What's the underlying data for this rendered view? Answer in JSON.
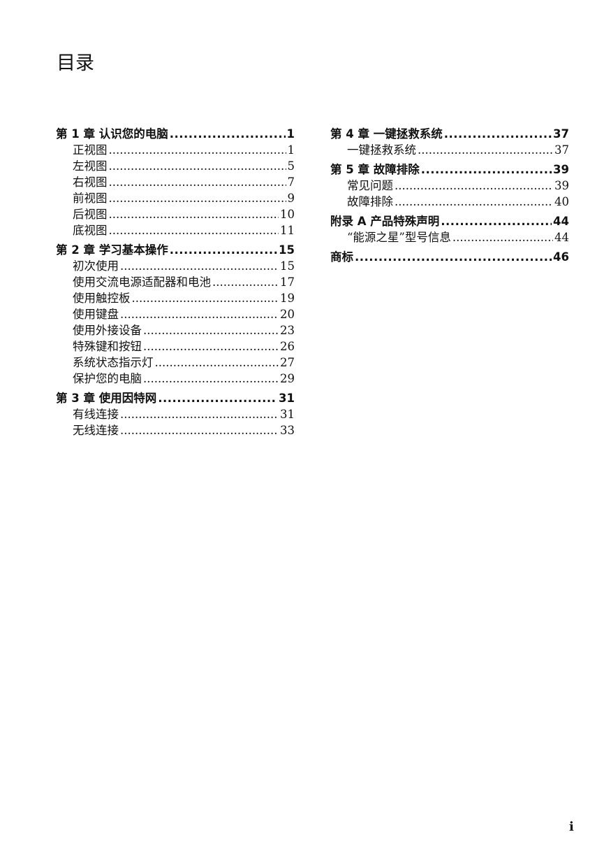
{
  "title": "目录",
  "left_column": [
    {
      "type": "chapter",
      "label": "第 1 章 认识您的电脑",
      "page": "1"
    },
    {
      "type": "section",
      "label": "正视图",
      "page": "1"
    },
    {
      "type": "section",
      "label": "左视图",
      "page": "5"
    },
    {
      "type": "section",
      "label": "右视图",
      "page": "7"
    },
    {
      "type": "section",
      "label": "前视图",
      "page": "9"
    },
    {
      "type": "section",
      "label": "后视图",
      "page": "10"
    },
    {
      "type": "section",
      "label": "底视图",
      "page": "11"
    },
    {
      "type": "chapter",
      "label": "第 2 章 学习基本操作",
      "page": "15"
    },
    {
      "type": "section",
      "label": "初次使用",
      "page": "15"
    },
    {
      "type": "section",
      "label": "使用交流电源适配器和电池",
      "page": "17"
    },
    {
      "type": "section",
      "label": "使用触控板",
      "page": "19"
    },
    {
      "type": "section",
      "label": "使用键盘",
      "page": "20"
    },
    {
      "type": "section",
      "label": "使用外接设备",
      "page": "23"
    },
    {
      "type": "section",
      "label": "特殊键和按钮",
      "page": "26"
    },
    {
      "type": "section",
      "label": "系统状态指示灯",
      "page": "27"
    },
    {
      "type": "section",
      "label": "保护您的电脑",
      "page": "29"
    },
    {
      "type": "chapter",
      "label": "第 3 章 使用因特网",
      "page": "31"
    },
    {
      "type": "section",
      "label": "有线连接",
      "page": "31"
    },
    {
      "type": "section",
      "label": "无线连接",
      "page": "33"
    }
  ],
  "right_column": [
    {
      "type": "chapter",
      "label": "第 4 章 一键拯救系统",
      "page": "37"
    },
    {
      "type": "section",
      "label": "一键拯救系统",
      "page": "37"
    },
    {
      "type": "chapter",
      "label": "第 5 章 故障排除",
      "page": "39"
    },
    {
      "type": "section",
      "label": "常见问题",
      "page": "39"
    },
    {
      "type": "section",
      "label": "故障排除",
      "page": "40"
    },
    {
      "type": "chapter",
      "label": "附录 A 产品特殊声明",
      "page": "44"
    },
    {
      "type": "section",
      "label": "“能源之星”型号信息",
      "page": "44"
    },
    {
      "type": "chapter",
      "label": "商标",
      "page": "46"
    }
  ],
  "page_number": "i"
}
